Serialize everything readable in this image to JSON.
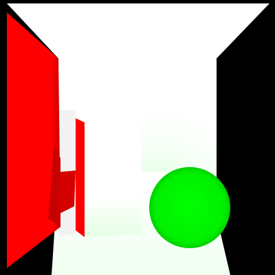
{
  "scene": {
    "description_visible_text": [],
    "colors": {
      "background": "#000000",
      "left_wall": "#ff0000",
      "left_wall_shadow": "#c40000",
      "back_wall": "#ffffff",
      "ceiling": "#ffffff",
      "floor_glow": "#e8ffe8",
      "box_front": "#ffffff",
      "box_side": "#ff0000",
      "sphere": "#00ff00",
      "sphere_edge": "#00c800"
    }
  }
}
